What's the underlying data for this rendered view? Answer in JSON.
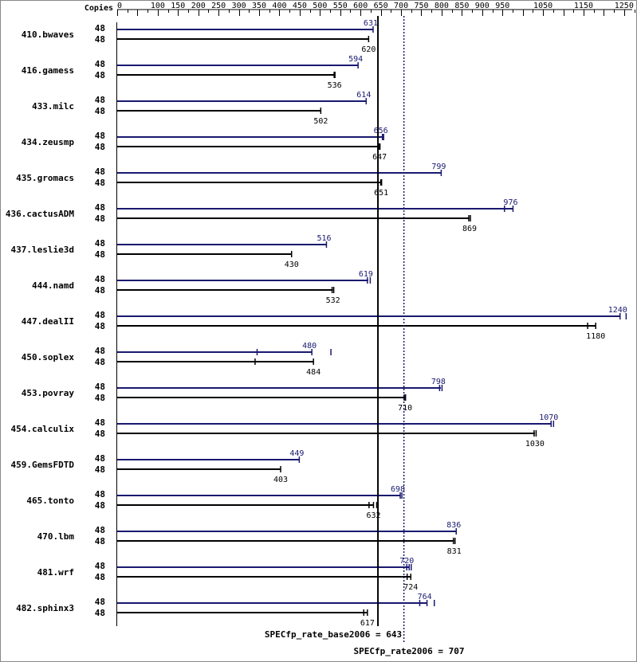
{
  "chart_data": {
    "type": "bar",
    "copies_label": "Copies",
    "axis_ticks": [
      "0",
      "100",
      "150",
      "200",
      "250",
      "300",
      "350",
      "400",
      "450",
      "500",
      "550",
      "600",
      "650",
      "700",
      "750",
      "800",
      "850",
      "900",
      "950",
      "1050",
      "1150",
      "1250"
    ],
    "xlim": [
      0,
      1270
    ],
    "colors": {
      "peak": "#191970",
      "base": "#000000",
      "frame": "#000000"
    },
    "benchmarks": [
      {
        "name": "410.bwaves",
        "peak": {
          "copies": "48",
          "value": 631,
          "label": "631",
          "runs": [
            631
          ]
        },
        "base": {
          "copies": "48",
          "value": 620,
          "label": "620",
          "runs": [
            620
          ]
        }
      },
      {
        "name": "416.gamess",
        "peak": {
          "copies": "48",
          "value": 594,
          "label": "594",
          "runs": [
            594
          ]
        },
        "base": {
          "copies": "48",
          "value": 536,
          "label": "536",
          "runs": [
            535,
            537
          ]
        }
      },
      {
        "name": "433.milc",
        "peak": {
          "copies": "48",
          "value": 614,
          "label": "614",
          "runs": [
            614
          ]
        },
        "base": {
          "copies": "48",
          "value": 502,
          "label": "502",
          "runs": [
            502
          ]
        }
      },
      {
        "name": "434.zeusmp",
        "peak": {
          "copies": "48",
          "value": 656,
          "label": "656",
          "runs": [
            654,
            657
          ]
        },
        "base": {
          "copies": "48",
          "value": 647,
          "label": "647",
          "runs": [
            646,
            648
          ]
        }
      },
      {
        "name": "435.gromacs",
        "peak": {
          "copies": "48",
          "value": 799,
          "label": "799",
          "runs": [
            799
          ]
        },
        "base": {
          "copies": "48",
          "value": 651,
          "label": "651",
          "runs": [
            650,
            652
          ]
        }
      },
      {
        "name": "436.cactusADM",
        "peak": {
          "copies": "48",
          "value": 976,
          "label": "976",
          "runs": [
            955,
            976
          ]
        },
        "base": {
          "copies": "48",
          "value": 869,
          "label": "869",
          "runs": [
            867,
            871
          ]
        }
      },
      {
        "name": "437.leslie3d",
        "peak": {
          "copies": "48",
          "value": 516,
          "label": "516",
          "runs": [
            516
          ]
        },
        "base": {
          "copies": "48",
          "value": 430,
          "label": "430",
          "runs": [
            430
          ]
        }
      },
      {
        "name": "444.namd",
        "peak": {
          "copies": "48",
          "value": 619,
          "label": "619",
          "runs": [
            617,
            624
          ]
        },
        "base": {
          "copies": "48",
          "value": 532,
          "label": "532",
          "runs": [
            530,
            534
          ]
        }
      },
      {
        "name": "447.dealII",
        "peak": {
          "copies": "48",
          "value": 1240,
          "label": "1240",
          "runs": [
            1240,
            1255
          ]
        },
        "base": {
          "copies": "48",
          "value": 1180,
          "label": "1180",
          "runs": [
            1160,
            1180
          ]
        }
      },
      {
        "name": "450.soplex",
        "peak": {
          "copies": "48",
          "value": 480,
          "label": "480",
          "runs": [
            345,
            480,
            527
          ]
        },
        "base": {
          "copies": "48",
          "value": 484,
          "label": "484",
          "runs": [
            340,
            484
          ]
        }
      },
      {
        "name": "453.povray",
        "peak": {
          "copies": "48",
          "value": 798,
          "label": "798",
          "runs": [
            795,
            801
          ]
        },
        "base": {
          "copies": "48",
          "value": 710,
          "label": "710",
          "runs": [
            708,
            711
          ]
        }
      },
      {
        "name": "454.calculix",
        "peak": {
          "copies": "48",
          "value": 1070,
          "label": "1070",
          "runs": [
            1070,
            1076
          ]
        },
        "base": {
          "copies": "48",
          "value": 1030,
          "label": "1030",
          "runs": [
            1028,
            1033
          ]
        }
      },
      {
        "name": "459.GemsFDTD",
        "peak": {
          "copies": "48",
          "value": 449,
          "label": "449",
          "runs": [
            449
          ]
        },
        "base": {
          "copies": "48",
          "value": 403,
          "label": "403",
          "runs": [
            403
          ]
        }
      },
      {
        "name": "465.tonto",
        "peak": {
          "copies": "48",
          "value": 698,
          "label": "698",
          "runs": [
            698,
            702
          ]
        },
        "base": {
          "copies": "48",
          "value": 632,
          "label": "632",
          "runs": [
            621,
            632,
            640
          ]
        }
      },
      {
        "name": "470.lbm",
        "peak": {
          "copies": "48",
          "value": 836,
          "label": "836",
          "runs": [
            836
          ]
        },
        "base": {
          "copies": "48",
          "value": 831,
          "label": "831",
          "runs": [
            829,
            833
          ]
        }
      },
      {
        "name": "481.wrf",
        "peak": {
          "copies": "48",
          "value": 720,
          "label": "720",
          "runs": [
            714,
            720,
            725
          ]
        },
        "base": {
          "copies": "48",
          "value": 724,
          "label": "724",
          "runs": [
            715,
            724
          ]
        }
      },
      {
        "name": "482.sphinx3",
        "peak": {
          "copies": "48",
          "value": 764,
          "label": "764",
          "runs": [
            746,
            764,
            782
          ]
        },
        "base": {
          "copies": "48",
          "value": 617,
          "label": "617",
          "runs": [
            608,
            617
          ]
        }
      }
    ],
    "base_mean": {
      "value": 643,
      "label": "SPECfp_rate_base2006 = 643"
    },
    "peak_mean": {
      "value": 707,
      "label": "SPECfp_rate2006 = 707"
    }
  }
}
